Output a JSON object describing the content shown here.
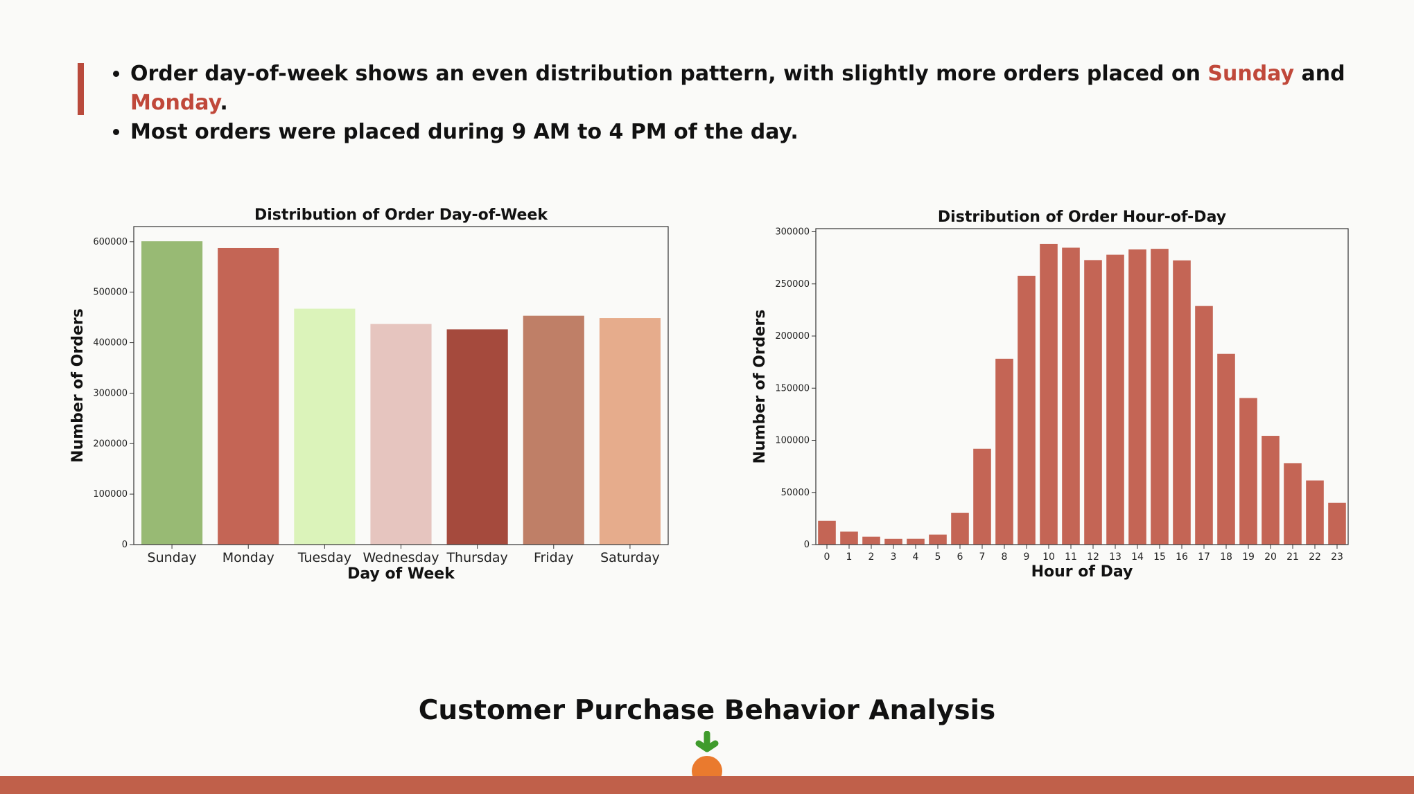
{
  "bullets": [
    {
      "text_before": "Order day-of-week shows an even distribution pattern, with slightly more orders placed on ",
      "highlight1": "Sunday",
      "text_mid": " and ",
      "highlight2": "Monday",
      "text_after": "."
    },
    {
      "text": "Most orders were placed during 9 AM to 4 PM of the day."
    }
  ],
  "footer": {
    "title": "Customer Purchase Behavior Analysis"
  },
  "colors": {
    "accent": "#b94a3c",
    "highlight": "#c0483a",
    "bottom_bar": "#c0604a",
    "bar_default": "#c46555"
  },
  "chart_data": [
    {
      "type": "bar",
      "title": "Distribution of Order Day-of-Week",
      "xlabel": "Day of Week",
      "ylabel": "Number of Orders",
      "categories": [
        "Sunday",
        "Monday",
        "Tuesday",
        "Wednesday",
        "Thursday",
        "Friday",
        "Saturday"
      ],
      "values": [
        600905,
        587478,
        467260,
        436972,
        426339,
        453368,
        448761
      ],
      "bar_colors": [
        "#98ba74",
        "#c46555",
        "#dbf3ba",
        "#e6c5bf",
        "#a54a3d",
        "#bf7f67",
        "#e6ac8c"
      ],
      "ylim": [
        0,
        630000
      ],
      "yticks": [
        0,
        100000,
        200000,
        300000,
        400000,
        500000,
        600000
      ],
      "grid": false
    },
    {
      "type": "bar",
      "title": "Distribution of Order Hour-of-Day",
      "xlabel": "Hour of Day",
      "ylabel": "Number of Orders",
      "categories": [
        "0",
        "1",
        "2",
        "3",
        "4",
        "5",
        "6",
        "7",
        "8",
        "9",
        "10",
        "11",
        "12",
        "13",
        "14",
        "15",
        "16",
        "17",
        "18",
        "19",
        "20",
        "21",
        "22",
        "23"
      ],
      "values": [
        22758,
        12398,
        7539,
        5474,
        5527,
        9569,
        30529,
        91868,
        178201,
        257812,
        288418,
        284728,
        272841,
        277999,
        283042,
        283639,
        272553,
        228795,
        182912,
        140569,
        104292,
        78109,
        61468,
        40043
      ],
      "bar_colors": [
        "#c46555"
      ],
      "ylim": [
        0,
        303000
      ],
      "yticks": [
        0,
        50000,
        100000,
        150000,
        200000,
        250000,
        300000
      ],
      "grid": false
    }
  ]
}
